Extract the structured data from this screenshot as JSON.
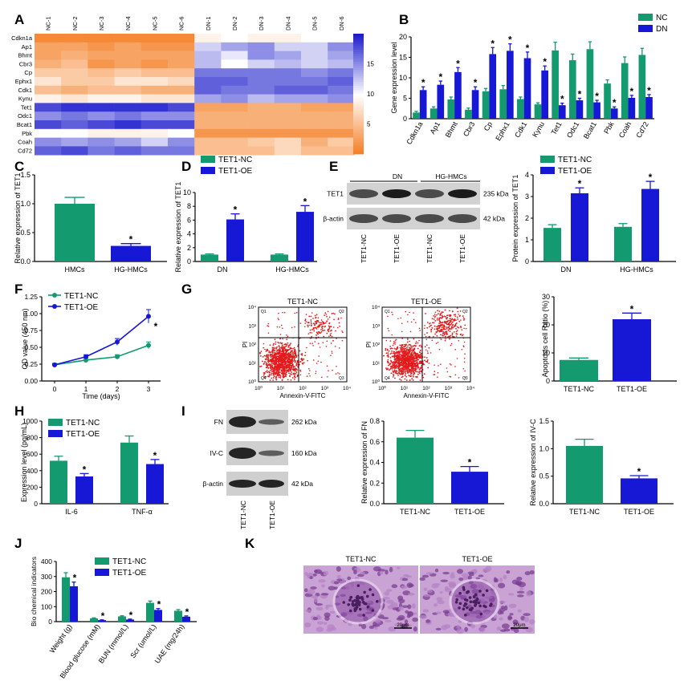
{
  "colors": {
    "nc": "#139a6f",
    "dn": "#1717d6",
    "axis": "#000000",
    "flow_dot": "#e31a1c",
    "heat_low": "#f47c20",
    "heat_mid": "#ffffff",
    "heat_high": "#1c1ccc",
    "histo": "#9a5cb0"
  },
  "panel_labels": {
    "A": "A",
    "B": "B",
    "C": "C",
    "D": "D",
    "E": "E",
    "F": "F",
    "G": "G",
    "H": "H",
    "I": "I",
    "J": "J",
    "K": "K"
  },
  "star": "*",
  "chart_data": [
    {
      "id": "A",
      "type": "heatmap",
      "columns": [
        "NC-1",
        "NC-2",
        "NC-3",
        "NC-4",
        "NC-5",
        "NC-6",
        "DN-1",
        "DN-2",
        "DN-3",
        "DN-4",
        "DN-5",
        "DN-6"
      ],
      "rows": [
        "Cdkn1a",
        "Ap1",
        "Bhmt",
        "Cbr3",
        "Cp",
        "Ephx1",
        "Cdk1",
        "Kynu",
        "Tet1",
        "Odc1",
        "Bcat1",
        "Pbk",
        "Coah",
        "Cd72"
      ],
      "values": [
        [
          1,
          1,
          1,
          1,
          1,
          1,
          9,
          10,
          9,
          9,
          10,
          10
        ],
        [
          3,
          3,
          2,
          3,
          2,
          2,
          12,
          14,
          15,
          12,
          12,
          15
        ],
        [
          3,
          4,
          3,
          3,
          3,
          3,
          13,
          11,
          15,
          14,
          12,
          14
        ],
        [
          4,
          5,
          2,
          3,
          2,
          3,
          13,
          10,
          12,
          13,
          12,
          13
        ],
        [
          6,
          6,
          5,
          6,
          5,
          5,
          16,
          16,
          16,
          16,
          15,
          16
        ],
        [
          8,
          6,
          6,
          8,
          8,
          7,
          17,
          17,
          16,
          16,
          16,
          17
        ],
        [
          5,
          4,
          5,
          5,
          4,
          4,
          17,
          16,
          16,
          17,
          17,
          16
        ],
        [
          9,
          8,
          9,
          9,
          8,
          8,
          14,
          15,
          13,
          14,
          14,
          15
        ],
        [
          18,
          19,
          19,
          19,
          19,
          18,
          3,
          3,
          4,
          4,
          3,
          3
        ],
        [
          15,
          16,
          15,
          16,
          15,
          15,
          4,
          4,
          4,
          4,
          4,
          4
        ],
        [
          18,
          17,
          18,
          19,
          18,
          18,
          4,
          4,
          4,
          4,
          4,
          4
        ],
        [
          10,
          10,
          9,
          9,
          9,
          10,
          2,
          2,
          2,
          2,
          2,
          2
        ],
        [
          15,
          14,
          15,
          14,
          12,
          15,
          5,
          5,
          6,
          7,
          4,
          6
        ],
        [
          17,
          18,
          16,
          17,
          16,
          16,
          5,
          5,
          5,
          7,
          5,
          5
        ]
      ],
      "colorbar_ticks": [
        5,
        10,
        15
      ],
      "range": [
        0,
        20
      ]
    },
    {
      "id": "B",
      "type": "bar",
      "ylabel": "Gene expression level",
      "ylim": [
        0,
        20
      ],
      "yticks": [
        0,
        5,
        10,
        15,
        20
      ],
      "categories": [
        "Cdkn1a",
        "Ap1",
        "Bhmt",
        "Cbr3",
        "Cp",
        "Ephx1",
        "Cdk1",
        "Kynu",
        "Tet1",
        "Odc1",
        "Bcat1",
        "Pbk",
        "Coah",
        "Cd72"
      ],
      "series": [
        {
          "name": "NC",
          "values": [
            1.5,
            2.5,
            4.7,
            2.2,
            6.7,
            7.2,
            4.8,
            3.5,
            16.7,
            14.3,
            17,
            8.6,
            13.6,
            15.6
          ],
          "errors": [
            0.3,
            0.4,
            0.6,
            0.4,
            0.7,
            0.9,
            0.5,
            0.4,
            2,
            1.5,
            1.8,
            0.9,
            1.5,
            1.6
          ]
        },
        {
          "name": "DN",
          "values": [
            7,
            8.3,
            11.4,
            7,
            15.8,
            16.6,
            14.8,
            11.8,
            3.3,
            4.5,
            4,
            2.5,
            5.1,
            5.3
          ],
          "errors": [
            0.8,
            0.9,
            1.1,
            0.8,
            1.6,
            1.7,
            1.5,
            1.1,
            0.5,
            0.5,
            0.5,
            0.4,
            0.6,
            0.6
          ]
        }
      ],
      "sig_series": [
        1,
        1,
        1,
        1,
        1,
        1,
        1,
        1,
        1,
        1,
        1,
        1,
        1,
        1
      ]
    },
    {
      "id": "C",
      "type": "bar",
      "ylabel": "Relative expression of TET1",
      "ylim": [
        0,
        1.5
      ],
      "yticks": [
        "0.0",
        "0.5",
        "1.0",
        "1.5"
      ],
      "categories": [
        "HMCs",
        "HG-HMCs"
      ],
      "values": [
        1.0,
        0.27
      ],
      "errors": [
        0.11,
        0.04
      ],
      "sig": [
        false,
        true
      ]
    },
    {
      "id": "D",
      "type": "bar",
      "ylabel": "Relative expression of TET1",
      "ylim": [
        0,
        10
      ],
      "yticks": [
        0,
        2,
        4,
        6,
        8,
        10
      ],
      "categories": [
        "DN",
        "HG-HMCs"
      ],
      "series": [
        {
          "name": "TET1-NC",
          "values": [
            1.0,
            1.0
          ],
          "errors": [
            0.1,
            0.1
          ]
        },
        {
          "name": "TET1-OE",
          "values": [
            6.1,
            7.2
          ],
          "errors": [
            0.8,
            0.9
          ]
        }
      ]
    },
    {
      "id": "E_blot",
      "type": "blot",
      "groups": [
        "DN",
        "HG-HMCs"
      ],
      "bands": [
        "TET1",
        "β-actin"
      ],
      "kda": [
        "235 kDa",
        "42 kDa"
      ],
      "lanes": [
        "TET1-NC",
        "TET1-OE",
        "TET1-NC",
        "TET1-OE"
      ]
    },
    {
      "id": "E",
      "type": "bar",
      "ylabel": "Protein expression of TET1",
      "ylim": [
        0,
        4
      ],
      "yticks": [
        0,
        1,
        2,
        3,
        4
      ],
      "categories": [
        "DN",
        "HG-HMCs"
      ],
      "series": [
        {
          "name": "TET1-NC",
          "values": [
            1.55,
            1.6
          ],
          "errors": [
            0.15,
            0.15
          ]
        },
        {
          "name": "TET1-OE",
          "values": [
            3.15,
            3.35
          ],
          "errors": [
            0.25,
            0.35
          ]
        }
      ]
    },
    {
      "id": "F",
      "type": "line",
      "xlabel": "Time (days)",
      "ylabel": "OD value (450 nm)",
      "x": [
        0,
        1,
        2,
        3
      ],
      "ylim": [
        0,
        1.25
      ],
      "yticks": [
        "0.00",
        "0.25",
        "0.50",
        "0.75",
        "1.00",
        "1.25"
      ],
      "series": [
        {
          "name": "TET1-NC",
          "values": [
            0.24,
            0.31,
            0.36,
            0.53
          ],
          "errors": [
            0.02,
            0.03,
            0.03,
            0.05
          ]
        },
        {
          "name": "TET1-OE",
          "values": [
            0.24,
            0.36,
            0.58,
            0.96
          ],
          "errors": [
            0.02,
            0.03,
            0.05,
            0.1
          ]
        }
      ]
    },
    {
      "id": "G_flow",
      "type": "scatter",
      "plots": [
        "TET1-NC",
        "TET1-OE"
      ],
      "xlabel": "Annexin-V-FITC",
      "ylabel": "PI",
      "ticks": [
        "10⁰",
        "10¹",
        "10²",
        "10³",
        "10⁴"
      ],
      "quadrants": [
        "Q1",
        "Q2",
        "Q3",
        "Q4"
      ]
    },
    {
      "id": "G",
      "type": "bar",
      "ylabel": "Apoptosis cell Ratio (%)",
      "ylim": [
        0,
        30
      ],
      "yticks": [
        0,
        10,
        20,
        30
      ],
      "categories": [
        "TET1-NC",
        "TET1-OE"
      ],
      "values": [
        7.5,
        22
      ],
      "errors": [
        0.7,
        2.2
      ],
      "sig": [
        false,
        true
      ]
    },
    {
      "id": "H",
      "type": "bar",
      "ylabel": "Expression level (pg/mL)",
      "ylim": [
        0,
        1000
      ],
      "yticks": [
        0,
        200,
        400,
        600,
        800,
        1000
      ],
      "categories": [
        "IL-6",
        "TNF-α"
      ],
      "series": [
        {
          "name": "TET1-NC",
          "values": [
            520,
            740
          ],
          "errors": [
            55,
            80
          ]
        },
        {
          "name": "TET1-OE",
          "values": [
            330,
            480
          ],
          "errors": [
            35,
            55
          ]
        }
      ]
    },
    {
      "id": "I_blot",
      "type": "blot",
      "bands": [
        "FN",
        "IV-C",
        "β-actin"
      ],
      "kda": [
        "262 kDa",
        "160 kDa",
        "42 kDa"
      ],
      "lanes": [
        "TET1-NC",
        "TET1-OE"
      ]
    },
    {
      "id": "I1",
      "type": "bar",
      "ylabel": "Relative expression of FN",
      "ylim": [
        0,
        0.8
      ],
      "yticks": [
        "0.0",
        "0.2",
        "0.4",
        "0.6",
        "0.8"
      ],
      "categories": [
        "TET1-NC",
        "TET1-OE"
      ],
      "values": [
        0.64,
        0.31
      ],
      "errors": [
        0.07,
        0.05
      ],
      "sig": [
        false,
        true
      ]
    },
    {
      "id": "I2",
      "type": "bar",
      "ylabel": "Relative expression of IV-C",
      "ylim": [
        0,
        1.5
      ],
      "yticks": [
        "0.0",
        "0.5",
        "1.0",
        "1.5"
      ],
      "categories": [
        "TET1-NC",
        "TET1-OE"
      ],
      "values": [
        1.05,
        0.46
      ],
      "errors": [
        0.12,
        0.05
      ],
      "sig": [
        false,
        true
      ]
    },
    {
      "id": "J",
      "type": "bar",
      "ylabel": "Bio chemical indicators",
      "ylim": [
        0,
        400
      ],
      "yticks": [
        0,
        100,
        200,
        300,
        400
      ],
      "categories": [
        "Weight (g)",
        "Blood glucose (mM)",
        "BUN (mmol/L)",
        "Scr (umol/L)",
        "UAE (mg/24h)"
      ],
      "series": [
        {
          "name": "TET1-NC",
          "values": [
            295,
            22,
            35,
            125,
            72
          ],
          "errors": [
            30,
            3,
            4,
            12,
            8
          ]
        },
        {
          "name": "TET1-OE",
          "values": [
            235,
            10,
            14,
            78,
            33
          ],
          "errors": [
            28,
            2,
            3,
            9,
            5
          ]
        }
      ]
    },
    {
      "id": "K",
      "type": "image",
      "captions": [
        "TET1-NC",
        "TET1-OE"
      ],
      "scalebars": [
        "20μm",
        "20μm"
      ]
    }
  ]
}
